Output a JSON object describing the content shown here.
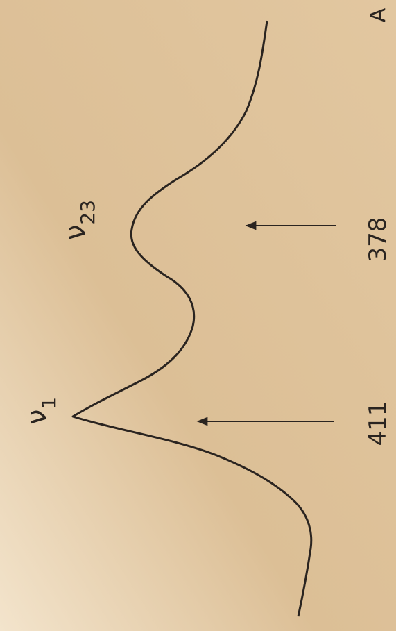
{
  "panel_label": "A",
  "peaks": [
    {
      "symbol": "ν",
      "subscript": "1",
      "position_label": "411"
    },
    {
      "symbol": "ν",
      "subscript": "23",
      "position_label": "378"
    }
  ]
}
